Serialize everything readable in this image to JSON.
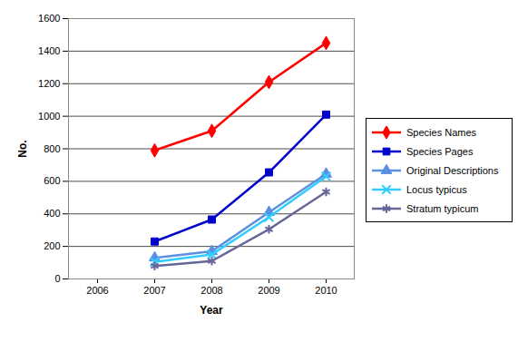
{
  "chart_data": {
    "type": "line",
    "x_label": "Year",
    "y_label": "No.",
    "categories": [
      "2006",
      "2007",
      "2008",
      "2009",
      "2010"
    ],
    "series": [
      {
        "name": "Species Names",
        "color": "#ff0000",
        "marker": "diamond",
        "values": [
          null,
          790,
          910,
          1210,
          1450
        ]
      },
      {
        "name": "Species Pages",
        "color": "#0000cc",
        "marker": "square",
        "values": [
          null,
          230,
          365,
          655,
          1010
        ]
      },
      {
        "name": "Original Descriptions",
        "color": "#5b8fe0",
        "marker": "triangle",
        "values": [
          null,
          130,
          170,
          410,
          645
        ]
      },
      {
        "name": "Locus typicus",
        "color": "#33ccff",
        "marker": "times",
        "values": [
          null,
          105,
          150,
          380,
          630
        ]
      },
      {
        "name": "Stratum typicum",
        "color": "#666699",
        "marker": "asterisk",
        "values": [
          null,
          80,
          110,
          305,
          535
        ]
      }
    ],
    "ylim": [
      0,
      1600
    ],
    "yticks": [
      0,
      200,
      400,
      600,
      800,
      1000,
      1200,
      1400,
      1600
    ],
    "grid": true,
    "legend": "right"
  }
}
